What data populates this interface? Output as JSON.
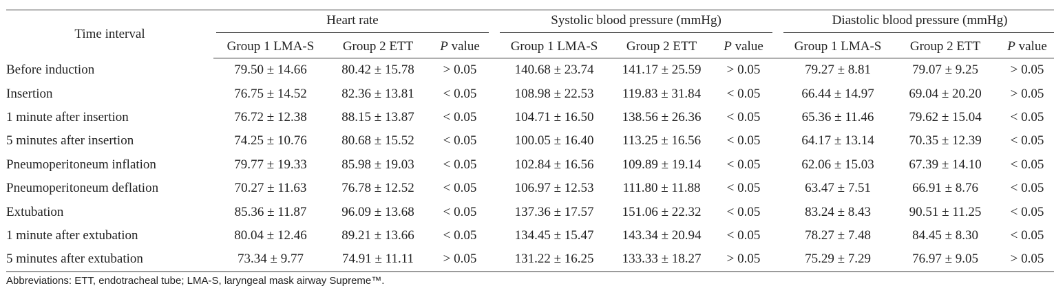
{
  "table": {
    "time_header": "Time interval",
    "groups": [
      {
        "title": "Heart rate"
      },
      {
        "title": "Systolic blood pressure (mmHg)"
      },
      {
        "title": "Diastolic blood pressure (mmHg)"
      }
    ],
    "subheaders": {
      "g1": "Group 1 LMA-S",
      "g2": "Group 2 ETT",
      "p_letter": "P",
      "p_word": " value"
    },
    "rows": [
      {
        "label": "Before induction",
        "hr": [
          "79.50 ± 14.66",
          "80.42 ± 15.78",
          "> 0.05"
        ],
        "sbp": [
          "140.68 ± 23.74",
          "141.17 ± 25.59",
          "> 0.05"
        ],
        "dbp": [
          "79.27 ± 8.81",
          "79.07 ± 9.25",
          "> 0.05"
        ]
      },
      {
        "label": "Insertion",
        "hr": [
          "76.75 ± 14.52",
          "82.36 ± 13.81",
          "< 0.05"
        ],
        "sbp": [
          "108.98 ± 22.53",
          "119.83 ± 31.84",
          "< 0.05"
        ],
        "dbp": [
          "66.44 ± 14.97",
          "69.04 ± 20.20",
          "> 0.05"
        ]
      },
      {
        "label": "1 minute after insertion",
        "hr": [
          "76.72 ± 12.38",
          "88.15 ± 13.87",
          "< 0.05"
        ],
        "sbp": [
          "104.71 ± 16.50",
          "138.56 ± 26.36",
          "< 0.05"
        ],
        "dbp": [
          "65.36 ± 11.46",
          "79.62 ± 15.04",
          "< 0.05"
        ]
      },
      {
        "label": "5 minutes after insertion",
        "hr": [
          "74.25 ± 10.76",
          "80.68 ± 15.52",
          "< 0.05"
        ],
        "sbp": [
          "100.05 ± 16.40",
          "113.25 ± 16.56",
          "< 0.05"
        ],
        "dbp": [
          "64.17 ± 13.14",
          "70.35 ± 12.39",
          "< 0.05"
        ]
      },
      {
        "label": "Pneumoperitoneum inflation",
        "hr": [
          "79.77 ± 19.33",
          "85.98 ± 19.03",
          "< 0.05"
        ],
        "sbp": [
          "102.84 ± 16.56",
          "109.89 ± 19.14",
          "< 0.05"
        ],
        "dbp": [
          "62.06 ± 15.03",
          "67.39 ± 14.10",
          "< 0.05"
        ]
      },
      {
        "label": "Pneumoperitoneum deflation",
        "hr": [
          "70.27 ± 11.63",
          "76.78 ± 12.52",
          "< 0.05"
        ],
        "sbp": [
          "106.97 ± 12.53",
          "111.80 ± 11.88",
          "< 0.05"
        ],
        "dbp": [
          "63.47 ± 7.51",
          "66.91 ± 8.76",
          "< 0.05"
        ]
      },
      {
        "label": "Extubation",
        "hr": [
          "85.36 ± 11.87",
          "96.09 ± 13.68",
          "< 0.05"
        ],
        "sbp": [
          "137.36 ± 17.57",
          "151.06 ± 22.32",
          "< 0.05"
        ],
        "dbp": [
          "83.24 ± 8.43",
          "90.51 ± 11.25",
          "< 0.05"
        ]
      },
      {
        "label": "1 minute after extubation",
        "hr": [
          "80.04 ± 12.46",
          "89.21 ± 13.66",
          "< 0.05"
        ],
        "sbp": [
          "134.45 ± 15.47",
          "143.34 ± 20.94",
          "< 0.05"
        ],
        "dbp": [
          "78.27 ± 7.48",
          "84.45 ± 8.30",
          "< 0.05"
        ]
      },
      {
        "label": "5 minutes after extubation",
        "hr": [
          "73.34 ± 9.77",
          "74.91 ± 11.11",
          "> 0.05"
        ],
        "sbp": [
          "131.22 ± 16.25",
          "133.33 ± 18.27",
          "> 0.05"
        ],
        "dbp": [
          "75.29 ± 7.29",
          "76.97 ± 9.05",
          "> 0.05"
        ]
      }
    ]
  },
  "footnote": "Abbreviations: ETT, endotracheal tube; LMA-S, laryngeal mask airway Supreme™."
}
